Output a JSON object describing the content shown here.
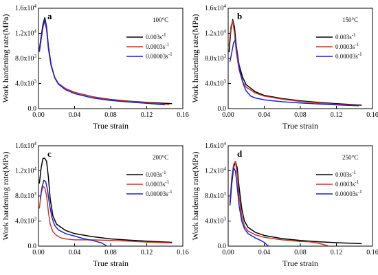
{
  "chart_data": [
    {
      "type": "line",
      "panel_label": "a",
      "annotation": "100°C",
      "xlabel": "True strain",
      "ylabel": "Work hardening rate(MPa)",
      "xlim": [
        0,
        0.16
      ],
      "ylim": [
        0,
        16000
      ],
      "x_ticks": [
        "0.00",
        "0.04",
        "0.08",
        "0.12",
        "0.16"
      ],
      "y_ticks": [
        {
          "mantissa": "0.0",
          "exp": ""
        },
        {
          "mantissa": "4.0x10",
          "exp": "3"
        },
        {
          "mantissa": "8.0x10",
          "exp": "3"
        },
        {
          "mantissa": "1.2x10",
          "exp": "4"
        },
        {
          "mantissa": "1.6x10",
          "exp": "4"
        }
      ],
      "legend_position": "top-right",
      "series": [
        {
          "name": {
            "rate": "0.003s",
            "exp": "-1"
          },
          "color": "#000000",
          "points": [
            [
              0.001,
              9500
            ],
            [
              0.003,
              11500
            ],
            [
              0.005,
              13500
            ],
            [
              0.007,
              14500
            ],
            [
              0.009,
              13000
            ],
            [
              0.011,
              10000
            ],
            [
              0.014,
              7000
            ],
            [
              0.018,
              5000
            ],
            [
              0.022,
              4000
            ],
            [
              0.03,
              3200
            ],
            [
              0.04,
              2600
            ],
            [
              0.06,
              1900
            ],
            [
              0.08,
              1450
            ],
            [
              0.1,
              1200
            ],
            [
              0.12,
              1000
            ],
            [
              0.148,
              800
            ]
          ]
        },
        {
          "name": {
            "rate": "0.0003s",
            "exp": "-1"
          },
          "color": "#c0392b",
          "points": [
            [
              0.001,
              9000
            ],
            [
              0.003,
              11000
            ],
            [
              0.005,
              13000
            ],
            [
              0.007,
              14000
            ],
            [
              0.009,
              12500
            ],
            [
              0.011,
              9500
            ],
            [
              0.014,
              6800
            ],
            [
              0.018,
              5000
            ],
            [
              0.022,
              4000
            ],
            [
              0.03,
              3200
            ],
            [
              0.04,
              2600
            ],
            [
              0.06,
              1900
            ],
            [
              0.08,
              1400
            ],
            [
              0.1,
              1150
            ],
            [
              0.12,
              950
            ],
            [
              0.145,
              650
            ]
          ]
        },
        {
          "name": {
            "rate": "0.00003s",
            "exp": "-1"
          },
          "color": "#1f1fd0",
          "points": [
            [
              0.001,
              9200
            ],
            [
              0.003,
              11200
            ],
            [
              0.005,
              13200
            ],
            [
              0.007,
              14200
            ],
            [
              0.009,
              12800
            ],
            [
              0.011,
              9800
            ],
            [
              0.014,
              6900
            ],
            [
              0.018,
              4900
            ],
            [
              0.022,
              3900
            ],
            [
              0.03,
              3000
            ],
            [
              0.04,
              2400
            ],
            [
              0.06,
              1700
            ],
            [
              0.08,
              1300
            ],
            [
              0.1,
              1050
            ],
            [
              0.12,
              850
            ],
            [
              0.14,
              600
            ]
          ]
        }
      ]
    },
    {
      "type": "line",
      "panel_label": "b",
      "annotation": "150°C",
      "xlabel": "True strain",
      "ylabel": "Work hardening rate(MPa)",
      "xlim": [
        0,
        0.16
      ],
      "ylim": [
        0,
        16000
      ],
      "x_ticks": [
        "0.00",
        "0.04",
        "0.08",
        "0.12",
        "0.16"
      ],
      "y_ticks": [
        {
          "mantissa": "0.0",
          "exp": ""
        },
        {
          "mantissa": "4.0x10",
          "exp": "3"
        },
        {
          "mantissa": "8.0x10",
          "exp": "3"
        },
        {
          "mantissa": "1.2x10",
          "exp": "4"
        },
        {
          "mantissa": "1.6x10",
          "exp": "4"
        }
      ],
      "legend_position": "top-right",
      "series": [
        {
          "name": {
            "rate": "0.003s",
            "exp": "-1"
          },
          "color": "#000000",
          "points": [
            [
              0.001,
              9000
            ],
            [
              0.003,
              12500
            ],
            [
              0.005,
              14200
            ],
            [
              0.007,
              13000
            ],
            [
              0.009,
              10000
            ],
            [
              0.012,
              7000
            ],
            [
              0.016,
              5000
            ],
            [
              0.02,
              3800
            ],
            [
              0.03,
              2700
            ],
            [
              0.04,
              2100
            ],
            [
              0.06,
              1600
            ],
            [
              0.08,
              1250
            ],
            [
              0.1,
              1000
            ],
            [
              0.12,
              800
            ],
            [
              0.148,
              550
            ]
          ]
        },
        {
          "name": {
            "rate": "0.0003s",
            "exp": "-1"
          },
          "color": "#c0392b",
          "points": [
            [
              0.001,
              10000
            ],
            [
              0.003,
              13000
            ],
            [
              0.005,
              14000
            ],
            [
              0.007,
              12000
            ],
            [
              0.009,
              9000
            ],
            [
              0.012,
              6200
            ],
            [
              0.016,
              4300
            ],
            [
              0.02,
              3400
            ],
            [
              0.03,
              2500
            ],
            [
              0.04,
              2000
            ],
            [
              0.06,
              1500
            ],
            [
              0.08,
              1150
            ],
            [
              0.1,
              900
            ],
            [
              0.12,
              700
            ],
            [
              0.145,
              500
            ]
          ]
        },
        {
          "name": {
            "rate": "0.00003s",
            "exp": "-1"
          },
          "color": "#1f1fd0",
          "points": [
            [
              0.002,
              7500
            ],
            [
              0.004,
              9000
            ],
            [
              0.006,
              10500
            ],
            [
              0.008,
              11000
            ],
            [
              0.01,
              9000
            ],
            [
              0.013,
              6000
            ],
            [
              0.017,
              3800
            ],
            [
              0.02,
              2800
            ],
            [
              0.025,
              2000
            ],
            [
              0.03,
              1700
            ],
            [
              0.04,
              1400
            ],
            [
              0.06,
              1100
            ],
            [
              0.08,
              900
            ],
            [
              0.1,
              750
            ],
            [
              0.12,
              600
            ],
            [
              0.145,
              450
            ]
          ]
        }
      ]
    },
    {
      "type": "line",
      "panel_label": "c",
      "annotation": "200°C",
      "xlabel": "True strain",
      "ylabel": "Work hardening rate(MPa)",
      "xlim": [
        0,
        0.16
      ],
      "ylim": [
        0,
        16000
      ],
      "x_ticks": [
        "0.00",
        "0.04",
        "0.08",
        "0.12",
        "0.16"
      ],
      "y_ticks": [
        {
          "mantissa": "0.0",
          "exp": ""
        },
        {
          "mantissa": "4.0x10",
          "exp": "3"
        },
        {
          "mantissa": "8.0x10",
          "exp": "3"
        },
        {
          "mantissa": "1.2x10",
          "exp": "4"
        },
        {
          "mantissa": "1.6x10",
          "exp": "4"
        }
      ],
      "legend_position": "top-right",
      "series": [
        {
          "name": {
            "rate": "0.003s",
            "exp": "-1"
          },
          "color": "#000000",
          "points": [
            [
              0.001,
              10000
            ],
            [
              0.003,
              12500
            ],
            [
              0.005,
              14000
            ],
            [
              0.007,
              14000
            ],
            [
              0.009,
              13500
            ],
            [
              0.011,
              11000
            ],
            [
              0.013,
              7500
            ],
            [
              0.016,
              4800
            ],
            [
              0.02,
              3500
            ],
            [
              0.03,
              2500
            ],
            [
              0.04,
              2000
            ],
            [
              0.06,
              1500
            ],
            [
              0.08,
              1150
            ],
            [
              0.1,
              950
            ],
            [
              0.12,
              800
            ],
            [
              0.148,
              600
            ]
          ]
        },
        {
          "name": {
            "rate": "0.0003s",
            "exp": "-1"
          },
          "color": "#c0392b",
          "points": [
            [
              0.001,
              6000
            ],
            [
              0.003,
              8500
            ],
            [
              0.005,
              9500
            ],
            [
              0.007,
              9300
            ],
            [
              0.009,
              8000
            ],
            [
              0.011,
              5500
            ],
            [
              0.013,
              3500
            ],
            [
              0.016,
              2300
            ],
            [
              0.02,
              1700
            ],
            [
              0.025,
              1300
            ],
            [
              0.03,
              1150
            ],
            [
              0.04,
              1000
            ],
            [
              0.06,
              1000
            ],
            [
              0.08,
              900
            ],
            [
              0.1,
              800
            ],
            [
              0.12,
              650
            ],
            [
              0.148,
              500
            ]
          ]
        },
        {
          "name": {
            "rate": "0.00003s",
            "exp": "-1"
          },
          "color": "#1f1fd0",
          "points": [
            [
              0.002,
              7500
            ],
            [
              0.004,
              9500
            ],
            [
              0.006,
              10500
            ],
            [
              0.008,
              10300
            ],
            [
              0.01,
              9000
            ],
            [
              0.012,
              6800
            ],
            [
              0.015,
              4500
            ],
            [
              0.018,
              3300
            ],
            [
              0.022,
              2600
            ],
            [
              0.03,
              2000
            ],
            [
              0.04,
              1600
            ],
            [
              0.05,
              1200
            ],
            [
              0.06,
              900
            ],
            [
              0.07,
              500
            ],
            [
              0.076,
              0
            ]
          ]
        }
      ]
    },
    {
      "type": "line",
      "panel_label": "d",
      "annotation": "250°C",
      "xlabel": "True strain",
      "ylabel": "Work hardening rate(MPa)",
      "xlim": [
        0,
        0.16
      ],
      "ylim": [
        0,
        16000
      ],
      "x_ticks": [
        "0.00",
        "0.04",
        "0.08",
        "0.12",
        "0.16"
      ],
      "y_ticks": [
        {
          "mantissa": "0.0",
          "exp": ""
        },
        {
          "mantissa": "4.0x10",
          "exp": "3"
        },
        {
          "mantissa": "8.0x10",
          "exp": "3"
        },
        {
          "mantissa": "1.2x10",
          "exp": "4"
        },
        {
          "mantissa": "1.6x10",
          "exp": "4"
        }
      ],
      "legend_position": "top-right",
      "series": [
        {
          "name": {
            "rate": "0.003s",
            "exp": "-1"
          },
          "color": "#000000",
          "points": [
            [
              0.002,
              6500
            ],
            [
              0.004,
              10000
            ],
            [
              0.006,
              12500
            ],
            [
              0.008,
              13500
            ],
            [
              0.01,
              12500
            ],
            [
              0.012,
              9500
            ],
            [
              0.015,
              6000
            ],
            [
              0.018,
              4000
            ],
            [
              0.022,
              3000
            ],
            [
              0.03,
              2200
            ],
            [
              0.04,
              1700
            ],
            [
              0.06,
              1200
            ],
            [
              0.08,
              900
            ],
            [
              0.1,
              700
            ],
            [
              0.12,
              550
            ],
            [
              0.148,
              400
            ]
          ]
        },
        {
          "name": {
            "rate": "0.0003s",
            "exp": "-1"
          },
          "color": "#c0392b",
          "points": [
            [
              0.002,
              7000
            ],
            [
              0.004,
              11000
            ],
            [
              0.006,
              13000
            ],
            [
              0.008,
              13500
            ],
            [
              0.01,
              11500
            ],
            [
              0.012,
              8000
            ],
            [
              0.015,
              4800
            ],
            [
              0.018,
              3200
            ],
            [
              0.022,
              2400
            ],
            [
              0.03,
              1800
            ],
            [
              0.04,
              1400
            ],
            [
              0.06,
              1000
            ],
            [
              0.08,
              750
            ],
            [
              0.09,
              700
            ],
            [
              0.1,
              450
            ],
            [
              0.11,
              100
            ],
            [
              0.112,
              0
            ]
          ]
        },
        {
          "name": {
            "rate": "0.00003s",
            "exp": "-1"
          },
          "color": "#1f1fd0",
          "points": [
            [
              0.002,
              6500
            ],
            [
              0.004,
              10500
            ],
            [
              0.006,
              12500
            ],
            [
              0.008,
              12000
            ],
            [
              0.01,
              9500
            ],
            [
              0.012,
              6500
            ],
            [
              0.015,
              4000
            ],
            [
              0.018,
              2800
            ],
            [
              0.022,
              2000
            ],
            [
              0.03,
              1300
            ],
            [
              0.036,
              900
            ],
            [
              0.04,
              600
            ],
            [
              0.043,
              200
            ],
            [
              0.045,
              0
            ]
          ]
        }
      ]
    }
  ]
}
